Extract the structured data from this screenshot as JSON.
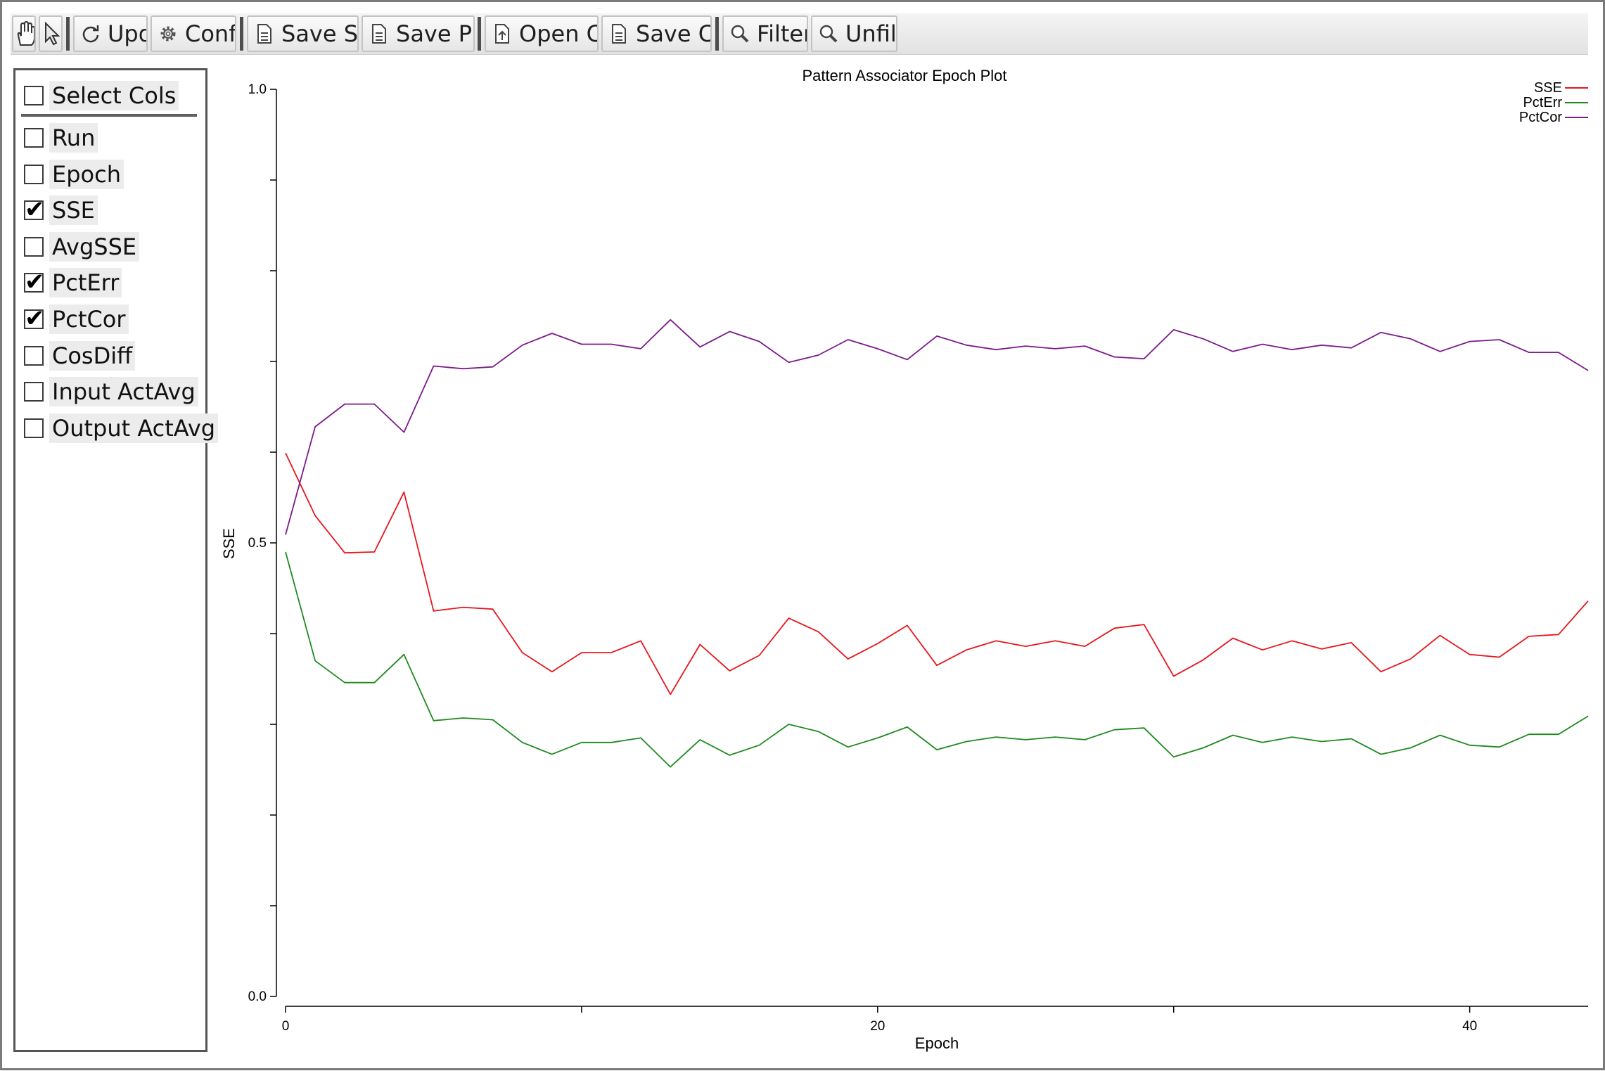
{
  "toolbar": {
    "buttons": [
      {
        "label": "Update",
        "icon": "refresh-icon"
      },
      {
        "label": "Config...",
        "icon": "gear-icon"
      },
      {
        "label": "Save SVG...",
        "icon": "document-icon"
      },
      {
        "label": "Save PNG...",
        "icon": "document-icon"
      },
      {
        "label": "Open CSV...",
        "icon": "open-file-icon"
      },
      {
        "label": "Save CSV...",
        "icon": "document-icon"
      },
      {
        "label": "Filter...",
        "icon": "magnifier-icon"
      },
      {
        "label": "Unfilter",
        "icon": "magnifier-icon"
      }
    ],
    "tools": [
      {
        "icon": "hand-pan-icon"
      },
      {
        "icon": "arrow-pointer-icon"
      }
    ]
  },
  "sidebar": {
    "select_all": {
      "label": "Select Cols",
      "checked": false
    },
    "columns": [
      {
        "label": "Run",
        "checked": false
      },
      {
        "label": "Epoch",
        "checked": false
      },
      {
        "label": "SSE",
        "checked": true
      },
      {
        "label": "AvgSSE",
        "checked": false
      },
      {
        "label": "PctErr",
        "checked": true
      },
      {
        "label": "PctCor",
        "checked": true
      },
      {
        "label": "CosDiff",
        "checked": false
      },
      {
        "label": "Input ActAvg",
        "checked": false
      },
      {
        "label": "Output ActAvg",
        "checked": false
      }
    ]
  },
  "chart_data": {
    "type": "line",
    "title": "Pattern Associator Epoch Plot",
    "xlabel": "Epoch",
    "ylabel": "SSE",
    "xlim": [
      0,
      44
    ],
    "ylim": [
      0.0,
      1.0
    ],
    "x_ticks": [
      0,
      20,
      40
    ],
    "y_ticks": [
      0.0,
      0.5,
      1.0
    ],
    "y_tick_labels": [
      "0.0",
      "0.5",
      "1.0"
    ],
    "grid": false,
    "legend_position": "top-right",
    "x": [
      0,
      1,
      2,
      3,
      4,
      5,
      6,
      7,
      8,
      9,
      10,
      11,
      12,
      13,
      14,
      15,
      16,
      17,
      18,
      19,
      20,
      21,
      22,
      23,
      24,
      25,
      26,
      27,
      28,
      29,
      30,
      31,
      32,
      33,
      34,
      35,
      36,
      37,
      38,
      39,
      40,
      41,
      42,
      43,
      44
    ],
    "series": [
      {
        "name": "SSE",
        "color": "#e8151b",
        "values": [
          0.599,
          0.53,
          0.489,
          0.49,
          0.556,
          0.425,
          0.429,
          0.427,
          0.379,
          0.358,
          0.379,
          0.379,
          0.392,
          0.333,
          0.388,
          0.359,
          0.376,
          0.417,
          0.402,
          0.372,
          0.389,
          0.409,
          0.365,
          0.382,
          0.392,
          0.386,
          0.392,
          0.386,
          0.406,
          0.41,
          0.353,
          0.371,
          0.395,
          0.382,
          0.392,
          0.383,
          0.39,
          0.358,
          0.372,
          0.398,
          0.377,
          0.374,
          0.397,
          0.399,
          0.436
        ]
      },
      {
        "name": "PctErr",
        "color": "#1f8a1f",
        "values": [
          0.49,
          0.37,
          0.346,
          0.346,
          0.377,
          0.304,
          0.307,
          0.305,
          0.28,
          0.267,
          0.28,
          0.28,
          0.285,
          0.253,
          0.283,
          0.266,
          0.277,
          0.3,
          0.292,
          0.275,
          0.285,
          0.297,
          0.272,
          0.281,
          0.286,
          0.283,
          0.286,
          0.283,
          0.294,
          0.296,
          0.264,
          0.274,
          0.288,
          0.28,
          0.286,
          0.281,
          0.284,
          0.267,
          0.274,
          0.288,
          0.277,
          0.275,
          0.289,
          0.289,
          0.309
        ]
      },
      {
        "name": "PctCor",
        "color": "#7b1a8a",
        "values": [
          0.509,
          0.628,
          0.653,
          0.653,
          0.622,
          0.695,
          0.692,
          0.694,
          0.718,
          0.731,
          0.719,
          0.719,
          0.714,
          0.746,
          0.716,
          0.733,
          0.722,
          0.699,
          0.707,
          0.724,
          0.714,
          0.702,
          0.728,
          0.718,
          0.713,
          0.717,
          0.714,
          0.717,
          0.705,
          0.703,
          0.735,
          0.725,
          0.711,
          0.719,
          0.713,
          0.718,
          0.715,
          0.732,
          0.725,
          0.711,
          0.722,
          0.724,
          0.71,
          0.71,
          0.69
        ]
      }
    ]
  }
}
